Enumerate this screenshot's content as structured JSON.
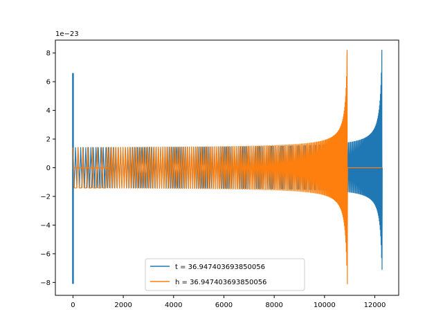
{
  "chart_data": {
    "type": "line",
    "title": "",
    "xlabel": "",
    "ylabel": "",
    "y_offset_label": "1e−23",
    "xlim": [
      -700,
      12950
    ],
    "ylim": [
      -8.9,
      8.9
    ],
    "xticks": [
      0,
      2000,
      4000,
      6000,
      8000,
      10000,
      12000
    ],
    "xtick_labels": [
      "0",
      "2000",
      "4000",
      "6000",
      "8000",
      "10000",
      "12000"
    ],
    "yticks": [
      -8,
      -6,
      -4,
      -2,
      0,
      2,
      4,
      6,
      8
    ],
    "ytick_labels": [
      "−8",
      "−6",
      "−4",
      "−2",
      "0",
      "2",
      "4",
      "6",
      "8"
    ],
    "grid": false,
    "legend_position": "lower-center",
    "series": [
      {
        "name": "t = 36.947403693850056",
        "color": "#1f77b4",
        "signal": "chirp",
        "start_burst": {
          "x": 0,
          "ymin": -8.1,
          "ymax": 6.6
        },
        "oscillation_start": 0,
        "merger_x": 12280,
        "base_amplitude": 1.35,
        "peak_amplitude_pos": 8.2,
        "peak_amplitude_neg": -7.1
      },
      {
        "name": "h = 36.947403693850056",
        "color": "#ff7f0e",
        "signal": "chirp",
        "flat_segment": [
          0,
          1400
        ],
        "oscillation_start": 0,
        "merger_x": 10900,
        "base_amplitude": 1.35,
        "peak_amplitude_pos": 8.2,
        "peak_amplitude_neg": -8.1,
        "flat_after_merger": [
          10900,
          12280
        ]
      }
    ]
  }
}
